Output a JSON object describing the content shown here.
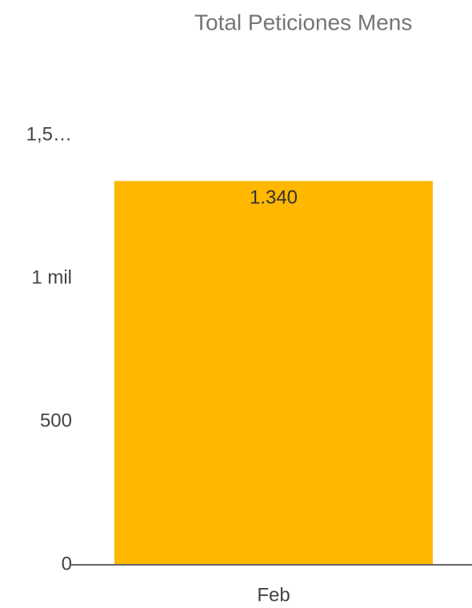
{
  "chart_data": {
    "type": "bar",
    "title": "Total Peticiones Mens",
    "categories": [
      "Feb"
    ],
    "values": [
      1340
    ],
    "value_labels": [
      "1.340"
    ],
    "color": "#ffb700",
    "ylim": [
      0,
      1500
    ],
    "yticks": [
      0,
      500,
      {
        "value": 1000,
        "label": "1 mil"
      },
      {
        "value": 1500,
        "label": "1,5…"
      }
    ],
    "grid": false
  }
}
